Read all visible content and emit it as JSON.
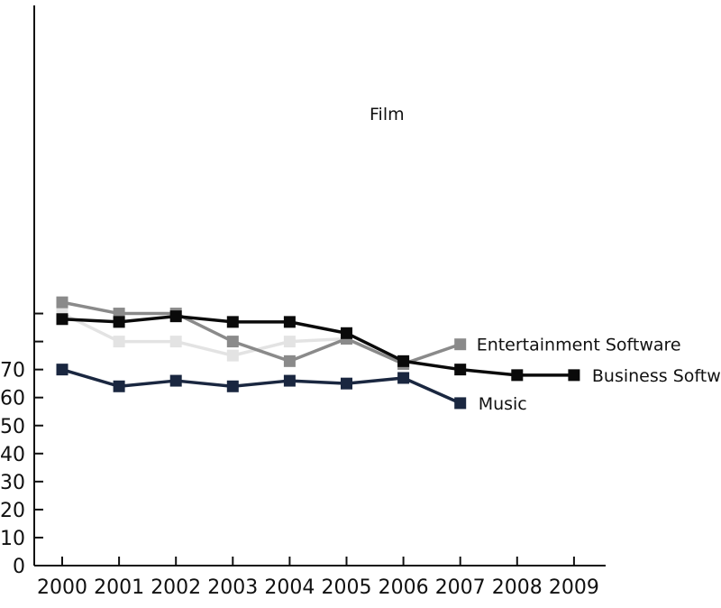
{
  "chart_data": {
    "type": "line",
    "title": "",
    "xlabel": "",
    "ylabel": "",
    "x": [
      "2000",
      "2001",
      "2002",
      "2003",
      "2004",
      "2005",
      "2006",
      "2007",
      "2008",
      "2009"
    ],
    "ylim": [
      0,
      100
    ],
    "yticks": [
      0,
      10,
      20,
      30,
      40,
      50,
      60,
      70
    ],
    "yticks_unlabeled": [
      80,
      90
    ],
    "grid": false,
    "legend": "inline labels at series ends",
    "series": [
      {
        "name": "Film",
        "color": "#e3e3e3",
        "values": [
          90,
          80,
          80,
          75,
          80,
          81,
          72,
          null,
          null,
          null
        ]
      },
      {
        "name": "Entertainment Software",
        "color": "#8a8a8a",
        "values": [
          94,
          90,
          90,
          80,
          73,
          81,
          72,
          79,
          null,
          null
        ]
      },
      {
        "name": "Business Software",
        "color": "#0a0a0a",
        "values": [
          88,
          87,
          89,
          87,
          87,
          83,
          73,
          70,
          68,
          68
        ]
      },
      {
        "name": "Music",
        "color": "#1a2740",
        "values": [
          70,
          64,
          66,
          64,
          66,
          65,
          67,
          58,
          null,
          null
        ]
      }
    ]
  }
}
